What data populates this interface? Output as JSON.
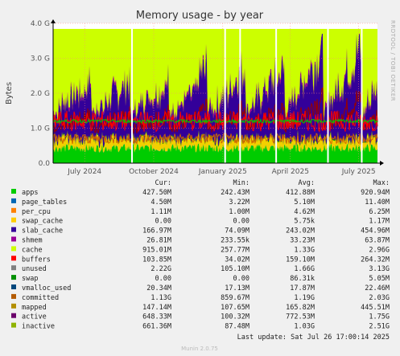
{
  "chart_data": {
    "type": "area",
    "title": "Memory usage - by year",
    "ylabel": "Bytes",
    "side_label": "RRDTOOL / TOBI OETIKER",
    "yticks": [
      {
        "value": 0,
        "label": "0.0"
      },
      {
        "value": 1.0,
        "label": "1.0 G"
      },
      {
        "value": 2.0,
        "label": "2.0 G"
      },
      {
        "value": 3.0,
        "label": "3.0 G"
      },
      {
        "value": 4.0,
        "label": "4.0 G"
      }
    ],
    "ylim": [
      0,
      4.0
    ],
    "y_unit": "GiB",
    "xlim": [
      "2024-05-20",
      "2025-07-26"
    ],
    "xticks": [
      {
        "date": "2024-07-01",
        "label": "July 2024"
      },
      {
        "date": "2024-10-01",
        "label": "October 2024"
      },
      {
        "date": "2025-01-01",
        "label": "January 2025"
      },
      {
        "date": "2025-04-01",
        "label": "April 2025"
      },
      {
        "date": "2025-07-01",
        "label": "July 2025"
      }
    ],
    "gaps": [
      [
        "2024-09-01",
        "2024-09-03"
      ],
      [
        "2025-01-03",
        "2025-01-05"
      ],
      [
        "2025-01-23",
        "2025-01-25"
      ],
      [
        "2025-03-12",
        "2025-03-13"
      ],
      [
        "2025-05-20",
        "2025-05-22"
      ],
      [
        "2025-07-04",
        "2025-07-06"
      ]
    ],
    "stack_colors": {
      "apps": "#00cc00",
      "page_tables": "#0066b3",
      "per_cpu": "#ff8000",
      "swap_cache": "#ffcc00",
      "slab_cache": "#f2d000",
      "shmem": "#008f00",
      "cache": "#330099",
      "buffers": "#990099",
      "unused": "#ccff00",
      "committed_line": "#00cc00",
      "mapped_line": "#ff0000",
      "active_line": "#cc6600",
      "inactive_line": "#990000"
    },
    "legend": {
      "headers": [
        "Cur:",
        "Min:",
        "Avg:",
        "Max:"
      ],
      "rows": [
        {
          "name": "apps",
          "color": "#00cc00",
          "cur": "427.50M",
          "min": "242.43M",
          "avg": "412.88M",
          "max": "920.94M"
        },
        {
          "name": "page_tables",
          "color": "#0066b3",
          "cur": "4.50M",
          "min": "3.22M",
          "avg": "5.10M",
          "max": "11.40M"
        },
        {
          "name": "per_cpu",
          "color": "#ff8000",
          "cur": "1.11M",
          "min": "1.00M",
          "avg": "4.62M",
          "max": "6.25M"
        },
        {
          "name": "swap_cache",
          "color": "#ffcc00",
          "cur": "0.00",
          "min": "0.00",
          "avg": "5.75k",
          "max": "1.17M"
        },
        {
          "name": "slab_cache",
          "color": "#330099",
          "cur": "166.97M",
          "min": "74.09M",
          "avg": "243.02M",
          "max": "454.96M"
        },
        {
          "name": "shmem",
          "color": "#990099",
          "cur": "26.81M",
          "min": "233.55k",
          "avg": "33.23M",
          "max": "63.87M"
        },
        {
          "name": "cache",
          "color": "#ccff00",
          "cur": "915.01M",
          "min": "257.77M",
          "avg": "1.33G",
          "max": "2.96G"
        },
        {
          "name": "buffers",
          "color": "#ff0000",
          "cur": "103.85M",
          "min": "34.02M",
          "avg": "159.10M",
          "max": "264.32M"
        },
        {
          "name": "unused",
          "color": "#808080",
          "cur": "2.22G",
          "min": "105.10M",
          "avg": "1.66G",
          "max": "3.13G"
        },
        {
          "name": "swap",
          "color": "#008f00",
          "cur": "0.00",
          "min": "0.00",
          "avg": "86.31k",
          "max": "5.05M"
        },
        {
          "name": "vmalloc_used",
          "color": "#00487d",
          "cur": "20.34M",
          "min": "17.13M",
          "avg": "17.87M",
          "max": "22.46M"
        },
        {
          "name": "committed",
          "color": "#b35a00",
          "cur": "1.13G",
          "min": "859.67M",
          "avg": "1.19G",
          "max": "2.03G"
        },
        {
          "name": "mapped",
          "color": "#b38f00",
          "cur": "147.14M",
          "min": "107.65M",
          "avg": "165.82M",
          "max": "445.51M"
        },
        {
          "name": "active",
          "color": "#6b006b",
          "cur": "648.33M",
          "min": "100.32M",
          "avg": "772.53M",
          "max": "1.75G"
        },
        {
          "name": "inactive",
          "color": "#8fb300",
          "cur": "661.36M",
          "min": "87.48M",
          "avg": "1.03G",
          "max": "2.51G"
        }
      ]
    }
  },
  "footer": {
    "last_update": "Last update: Sat Jul 26 17:00:14 2025",
    "munin": "Munin 2.0.75"
  }
}
